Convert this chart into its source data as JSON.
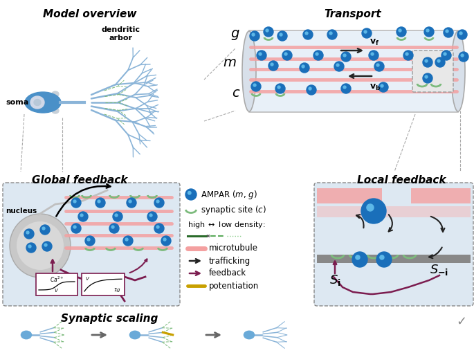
{
  "title_model": "Model overview",
  "title_transport": "Transport",
  "title_global": "Global feedback",
  "title_local": "Local feedback",
  "title_scaling": "Synaptic scaling",
  "bg_color": "#ffffff",
  "box_bg": "#dde8f2",
  "blue_ampar": "#1a6fba",
  "green_synapse": "#7dbb7d",
  "mt_color": "#f4a0a0",
  "fb_color": "#7B1C4F",
  "dend_color": "#8ab4d8",
  "dend_dash_color": "#7dbb7d",
  "arrow_c": "#222222",
  "tube_bg": "#e8f0f8",
  "tube_border": "#aaaaaa",
  "gray_bar": "#888888",
  "yellow_pot": "#c8a000",
  "nucleus_outer": "#c8c8c8",
  "nucleus_inner": "#d8d8d8",
  "soma_blue": "#4a90c8",
  "soma_axon": "#6aaad8"
}
